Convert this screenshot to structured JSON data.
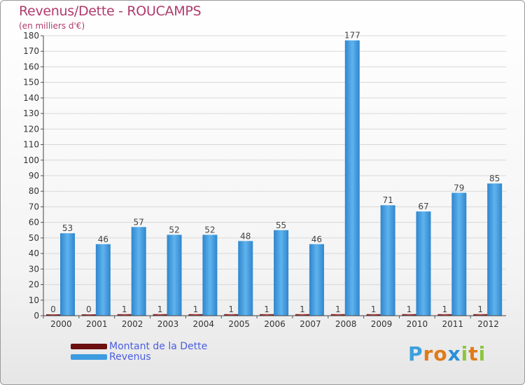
{
  "chart_data": {
    "type": "bar",
    "title": "Revenus/Dette - ROUCAMPS",
    "subtitle": "(en milliers d'€)",
    "categories": [
      "2000",
      "2001",
      "2002",
      "2003",
      "2004",
      "2005",
      "2006",
      "2007",
      "2008",
      "2009",
      "2010",
      "2011",
      "2012"
    ],
    "series": [
      {
        "name": "Montant de la Dette",
        "color": "#6b0f0f",
        "values": [
          0,
          0,
          1,
          1,
          1,
          1,
          1,
          1,
          1,
          1,
          1,
          1,
          1
        ]
      },
      {
        "name": "Revenus",
        "color": "#3d9ce0",
        "values": [
          53,
          46,
          57,
          52,
          52,
          48,
          55,
          46,
          177,
          71,
          67,
          79,
          85
        ]
      }
    ],
    "ylim": [
      0,
      180
    ],
    "yticks": [
      0,
      10,
      20,
      30,
      40,
      50,
      60,
      70,
      80,
      90,
      100,
      110,
      120,
      130,
      140,
      150,
      160,
      170,
      180
    ],
    "grid": true,
    "legend": "bottom-left"
  },
  "brand": {
    "text": "Proxiti"
  }
}
